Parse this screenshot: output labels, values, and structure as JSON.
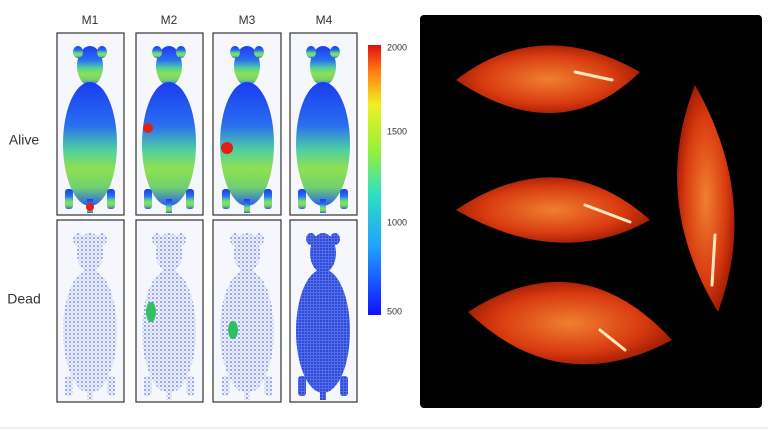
{
  "columns": [
    "M1",
    "M2",
    "M3",
    "M4"
  ],
  "rows": [
    "Alive",
    "Dead"
  ],
  "colorbar": {
    "ticks": [
      2000,
      1500,
      1000,
      500
    ]
  }
}
